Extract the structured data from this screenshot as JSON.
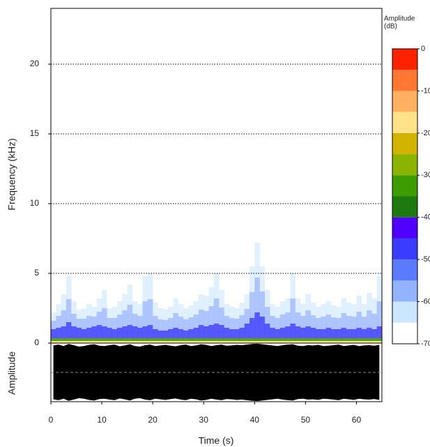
{
  "chart_data": {
    "type": "spectrogram",
    "xlabel": "Time (s)",
    "ylabel": "Frequency (kHz)",
    "waveform_label": "Amplitude",
    "xlim": [
      0,
      65
    ],
    "xticks": [
      0,
      10,
      20,
      30,
      40,
      50,
      60
    ],
    "ylim": [
      0,
      24
    ],
    "yticks": [
      0,
      5,
      10,
      15,
      20
    ],
    "grid": true,
    "times": [
      0,
      1,
      2,
      3,
      4,
      5,
      6,
      7,
      8,
      9,
      10,
      11,
      12,
      13,
      14,
      15,
      16,
      17,
      18,
      19,
      20,
      21,
      22,
      23,
      24,
      25,
      26,
      27,
      28,
      29,
      30,
      31,
      32,
      33,
      34,
      35,
      36,
      37,
      38,
      39,
      40,
      41,
      42,
      43,
      44,
      45,
      46,
      47,
      48,
      49,
      50,
      51,
      52,
      53,
      54,
      55,
      56,
      57,
      58,
      59,
      60,
      61,
      62,
      63,
      64
    ],
    "extent_khz": [
      2.2,
      2.8,
      3.5,
      4.8,
      3.0,
      2.4,
      2.5,
      2.8,
      2.6,
      3.2,
      3.8,
      2.5,
      2.6,
      3.0,
      3.5,
      4.2,
      3.0,
      2.8,
      4.8,
      5.0,
      2.9,
      2.5,
      2.4,
      2.6,
      3.2,
      2.8,
      2.5,
      2.7,
      3.0,
      3.5,
      3.4,
      4.0,
      5.0,
      3.8,
      2.8,
      2.6,
      2.5,
      2.9,
      3.5,
      5.5,
      7.2,
      5.5,
      3.8,
      2.8,
      2.6,
      3.0,
      3.2,
      5.0,
      3.2,
      2.8,
      3.5,
      2.9,
      2.6,
      2.8,
      3.0,
      2.7,
      2.6,
      3.2,
      2.9,
      2.8,
      3.4,
      2.8,
      3.6,
      3.2,
      4.8
    ],
    "core_khz": [
      1.0,
      1.1,
      1.2,
      1.5,
      1.2,
      1.1,
      1.0,
      1.1,
      1.2,
      1.3,
      1.2,
      1.1,
      1.0,
      1.1,
      1.2,
      1.3,
      1.2,
      1.1,
      1.2,
      1.3,
      1.0,
      0.9,
      0.9,
      1.0,
      1.1,
      1.0,
      0.9,
      1.0,
      1.1,
      1.3,
      1.2,
      1.3,
      1.4,
      1.3,
      1.1,
      1.0,
      1.0,
      1.1,
      1.4,
      1.8,
      2.2,
      1.9,
      1.4,
      1.1,
      1.0,
      1.1,
      1.2,
      1.4,
      1.2,
      1.1,
      1.2,
      1.1,
      1.0,
      1.0,
      1.1,
      1.0,
      1.0,
      1.1,
      1.0,
      1.0,
      1.1,
      1.0,
      1.1,
      1.0,
      1.2
    ],
    "envelope": [
      0.92,
      0.95,
      0.9,
      0.97,
      0.93,
      0.88,
      0.9,
      0.94,
      0.96,
      0.91,
      0.9,
      0.93,
      0.95,
      0.89,
      0.92,
      0.96,
      0.9,
      0.88,
      0.93,
      0.95,
      0.9,
      0.92,
      0.94,
      0.91,
      0.89,
      0.93,
      0.95,
      0.9,
      0.92,
      0.96,
      0.94,
      0.9,
      0.93,
      0.95,
      0.91,
      0.92,
      0.94,
      0.93,
      0.95,
      0.97,
      0.98,
      0.96,
      0.94,
      0.92,
      0.9,
      0.93,
      0.95,
      0.96,
      0.91,
      0.9,
      0.93,
      0.92,
      0.94,
      0.9,
      0.91,
      0.93,
      0.95,
      0.9,
      0.92,
      0.94,
      0.9,
      0.92,
      0.93,
      0.91,
      0.94
    ],
    "colorbar": {
      "title_lines": [
        "Amplitude",
        "(dB)"
      ],
      "levels": [
        0,
        -5,
        -10,
        -15,
        -20,
        -25,
        -30,
        -35,
        -40,
        -45,
        -50,
        -55,
        -60,
        -65,
        -70
      ],
      "colors": [
        "#ff2200",
        "#ff7733",
        "#ffb060",
        "#ffe28a",
        "#d2b300",
        "#8ab400",
        "#3c9c00",
        "#1e7a10",
        "#5000ff",
        "#3a3cff",
        "#5a7aff",
        "#93b2ff",
        "#cce6ff",
        "#ffffff"
      ],
      "ticks": [
        0,
        -10,
        -20,
        -30,
        -40,
        -50,
        -60,
        -70
      ]
    }
  }
}
